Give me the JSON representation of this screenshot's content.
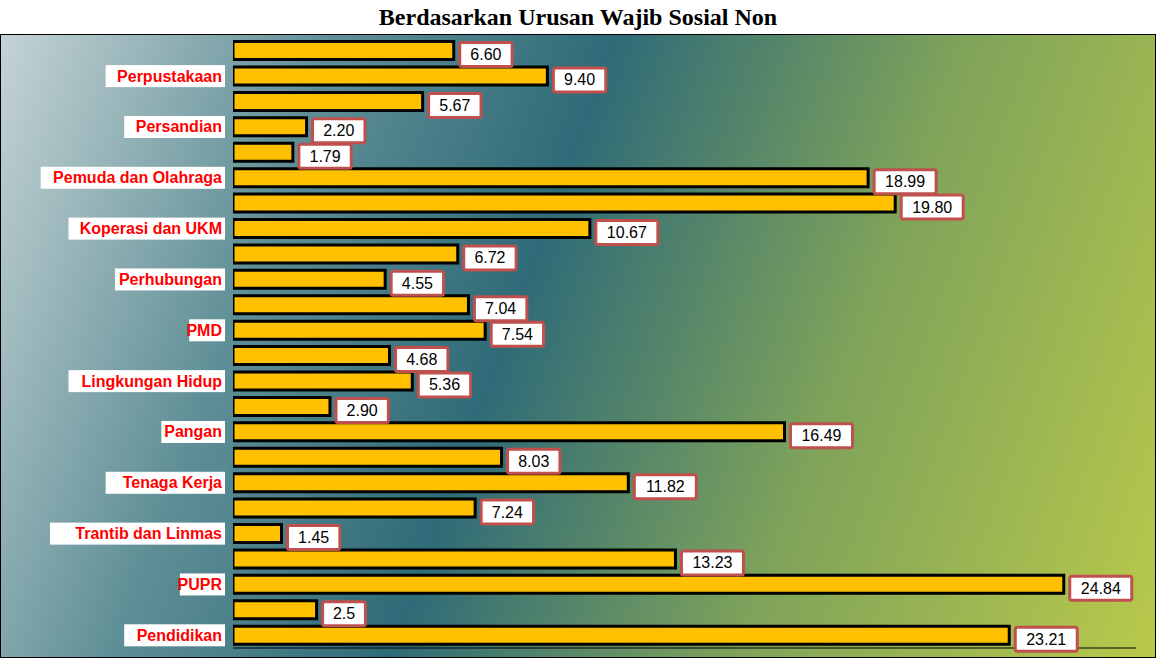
{
  "chart_data": {
    "type": "bar",
    "orientation": "horizontal",
    "title": "Berdasarkan Urusan Wajib Sosial Non",
    "categories": [
      null,
      "Perpustakaan",
      null,
      "Persandian",
      null,
      "Pemuda dan Olahraga",
      null,
      "Koperasi dan UKM",
      null,
      "Perhubungan",
      null,
      "PMD",
      null,
      "Lingkungan Hidup",
      null,
      "Pangan",
      null,
      "Tenaga Kerja",
      null,
      "Trantib dan Linmas",
      null,
      "PUPR",
      null,
      "Pendidikan"
    ],
    "values": [
      6.6,
      9.4,
      5.67,
      2.2,
      1.79,
      18.99,
      19.8,
      10.67,
      6.72,
      4.55,
      7.04,
      7.54,
      4.68,
      5.36,
      2.9,
      16.49,
      8.03,
      11.82,
      7.24,
      1.45,
      13.23,
      24.84,
      2.5,
      23.21
    ],
    "value_labels": [
      "6.60",
      "9.40",
      "5.67",
      "2.20",
      "1.79",
      "18.99",
      "19.80",
      "10.67",
      "6.72",
      "4.55",
      "7.04",
      "7.54",
      "4.68",
      "5.36",
      "2.90",
      "16.49",
      "8.03",
      "11.82",
      "7.24",
      "1.45",
      "13.23",
      "24.84",
      "2.5",
      "23.21"
    ],
    "color": "#FFC000",
    "xlim": [
      0,
      27
    ],
    "data_labels": true,
    "tick_labels": "y",
    "grid": false
  }
}
